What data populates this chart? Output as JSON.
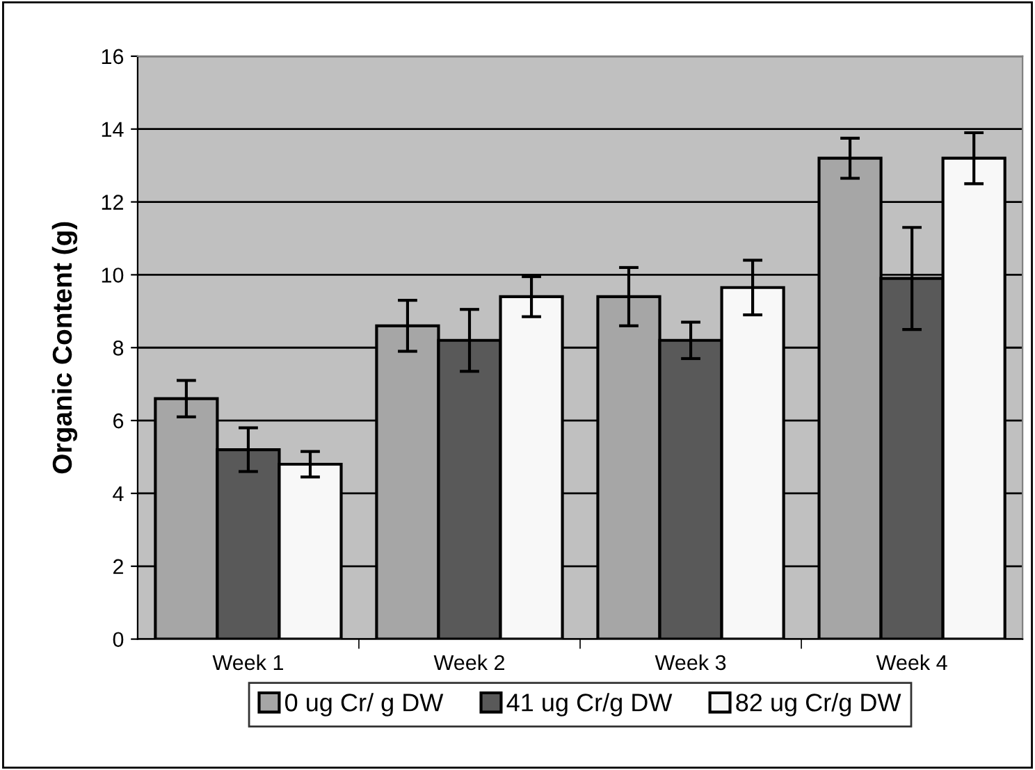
{
  "chart_data": {
    "type": "bar",
    "ylabel": "Organic Content (g)",
    "categories": [
      "Week 1",
      "Week 2",
      "Week 3",
      "Week 4"
    ],
    "series": [
      {
        "name": "0 ug Cr/ g DW",
        "color": "#a6a6a6",
        "values": [
          6.6,
          8.6,
          9.4,
          13.2
        ],
        "errors": [
          0.5,
          0.7,
          0.8,
          0.55
        ]
      },
      {
        "name": "41 ug Cr/g DW",
        "color": "#595959",
        "values": [
          5.2,
          8.2,
          8.2,
          9.9
        ],
        "errors": [
          0.6,
          0.85,
          0.5,
          1.4
        ]
      },
      {
        "name": "82 ug Cr/g DW",
        "color": "#f8f8f8",
        "values": [
          4.8,
          9.4,
          9.65,
          13.2
        ],
        "errors": [
          0.35,
          0.55,
          0.75,
          0.7
        ]
      }
    ],
    "ylim": [
      0,
      16
    ],
    "yticks": [
      0,
      2,
      4,
      6,
      8,
      10,
      12,
      14,
      16
    ],
    "grid": "y",
    "legend": "bottom"
  }
}
